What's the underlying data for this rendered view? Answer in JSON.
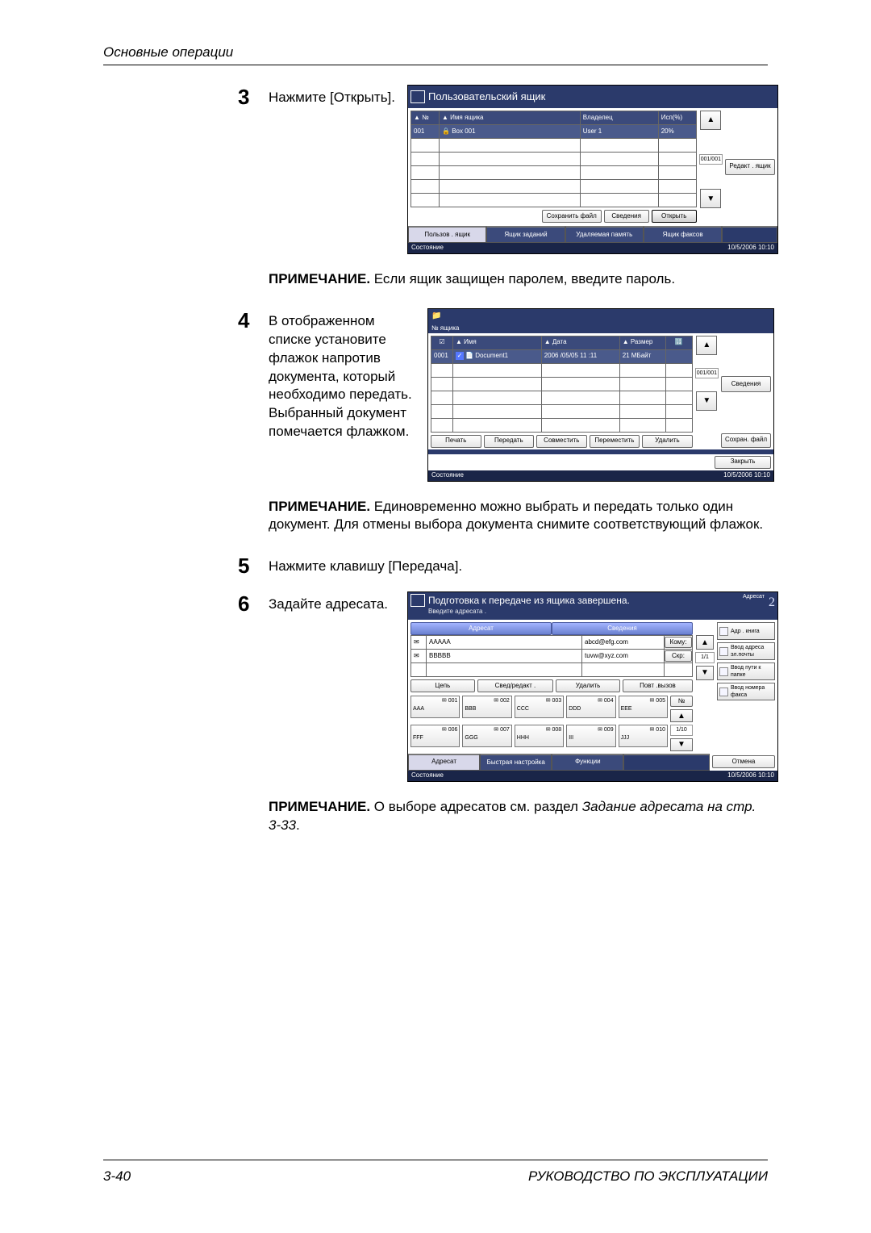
{
  "page": {
    "header": "Основные операции",
    "footer_left": "3-40",
    "footer_right": "РУКОВОДСТВО ПО ЭКСПЛУАТАЦИИ"
  },
  "steps": {
    "s3": {
      "num": "3",
      "text": "Нажмите [Открыть]."
    },
    "s4": {
      "num": "4",
      "text": "В отображенном списке установите флажок напротив документа, который необходимо передать. Выбранный документ помечается флажком."
    },
    "s5": {
      "num": "5",
      "text": "Нажмите клавишу [Передача]."
    },
    "s6": {
      "num": "6",
      "text": "Задайте адресата."
    }
  },
  "notes": {
    "n1": {
      "label": "ПРИМЕЧАНИЕ.",
      "text": " Если ящик защищен паролем, введите пароль."
    },
    "n2": {
      "label": "ПРИМЕЧАНИЕ.",
      "text": " Единовременно можно выбрать и передать только один документ. Для отмены выбора документа снимите соответствующий флажок."
    },
    "n3a": {
      "label": "ПРИМЕЧАНИЕ.",
      "text": " О выборе адресатов см. раздел "
    },
    "n3b": "Задание адресата на стр. 3-33",
    "n3c": "."
  },
  "shot1": {
    "title": "Пользовательский ящик",
    "cols": {
      "no": "№",
      "name": "Имя ящика",
      "owner": "Владелец",
      "used": "Исп(%)"
    },
    "tri": "▲",
    "row": {
      "no": "001",
      "name": "Box 001",
      "owner": "User 1",
      "used": "20%"
    },
    "lock": "🔒",
    "btns": {
      "save": "Сохранить файл",
      "info": "Сведения",
      "open": "Открыть",
      "edit": "Редакт . ящик"
    },
    "tabs": {
      "a": "Пользов . ящик",
      "b": "Ящик заданий",
      "c": "Удаляемая память",
      "d": "Ящик факсов"
    },
    "pagenum": "001/001",
    "status_l": "Состояние",
    "status_r": "10/5/2006    10:10"
  },
  "shot2": {
    "header": "№ ящика",
    "cols": {
      "name": "Имя",
      "date": "Дата",
      "size": "Размер"
    },
    "tri": "▲",
    "row": {
      "no": "0001",
      "name": "Document1",
      "date": "2006 /05/05 11 :11",
      "size": "21 МБайт",
      "doc": "📄"
    },
    "icons": {
      "chk": "☑",
      "many": "🔢"
    },
    "pagenum": "001/001",
    "btns": {
      "print": "Печать",
      "send": "Передать",
      "merge": "Совместить",
      "move": "Переместить",
      "delete": "Удалить",
      "store": "Сохран. файл",
      "info": "Сведения",
      "close": "Закрыть"
    },
    "status_l": "Состояние",
    "status_r": "10/5/2006    10:10"
  },
  "shot3": {
    "title": "Подготовка к передаче из ящика завершена.",
    "sub": "Введите адресата .",
    "badge_label": "Адресат",
    "badge_num": "2",
    "tab_l": "Адресат",
    "tab_r": "Сведения",
    "dest": [
      {
        "name": "AAAAA",
        "addr": "abcd@efg.com",
        "tag": "Кому:"
      },
      {
        "name": "BBBBB",
        "addr": "tuvw@xyz.com",
        "tag": "Cкр:"
      }
    ],
    "page_tr": "1/1",
    "toolbar": {
      "chain": "Цепь",
      "edit": "Свед/редакт .",
      "del": "Удалить",
      "recall": "Повт .вызов"
    },
    "speed": [
      {
        "n": "001",
        "t": "AAA"
      },
      {
        "n": "002",
        "t": "BBB"
      },
      {
        "n": "003",
        "t": "CCC"
      },
      {
        "n": "004",
        "t": "DDD"
      },
      {
        "n": "005",
        "t": "EEE"
      },
      {
        "n": "006",
        "t": "FFF"
      },
      {
        "n": "007",
        "t": "GGG"
      },
      {
        "n": "008",
        "t": "HHH"
      },
      {
        "n": "009",
        "t": "III"
      },
      {
        "n": "010",
        "t": "JJJ"
      }
    ],
    "speed_side": {
      "no": "№",
      "page": "1/10"
    },
    "bottom_tabs": {
      "a": "Адресат",
      "b": "Быстрая настройка",
      "c": "Функции"
    },
    "side": {
      "ab": "Адр . книга",
      "email": "Ввод адреса эл.почты",
      "path": "Ввод пути к папке",
      "fax": "Ввод номера факса"
    },
    "cancel": "Отмена",
    "status_l": "Состояние",
    "status_r": "10/5/2006    10:10"
  },
  "glyphs": {
    "up": "▲",
    "down": "▼",
    "mail": "✉",
    "doc": "📄",
    "fax": "📠",
    "folder": "📁",
    "book": "📖"
  }
}
